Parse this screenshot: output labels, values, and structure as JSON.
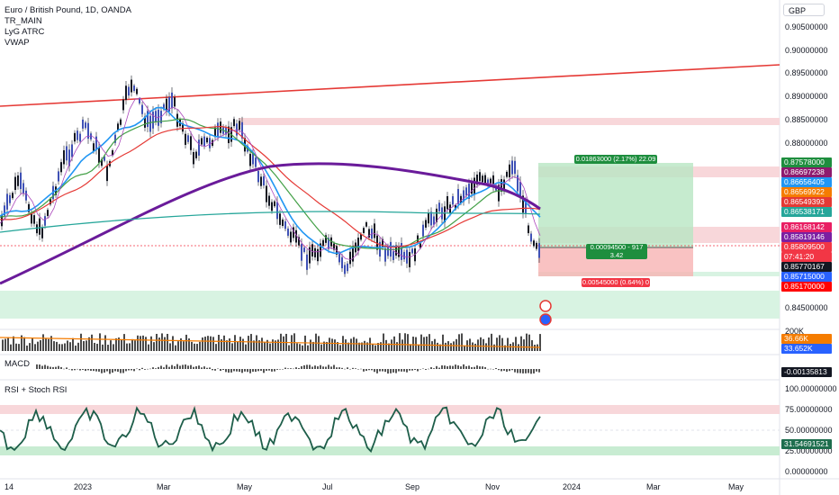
{
  "legend": {
    "symbol": "Euro / British Pound, 1D, OANDA",
    "indicators": [
      "TR_MAIN",
      "LyG ATRC",
      "VWAP"
    ]
  },
  "currency": "GBP",
  "price_axis": {
    "labels": [
      "0.90500000",
      "0.90000000",
      "0.89500000",
      "0.89000000",
      "0.88500000",
      "0.88000000",
      "0.84500000"
    ]
  },
  "price_tags": [
    {
      "text": "0.87578000",
      "color": "#1e8e3e"
    },
    {
      "text": "0.86697238",
      "color": "#8e1a6e"
    },
    {
      "text": "0.86656405",
      "color": "#2196f3"
    },
    {
      "text": "0.86569922",
      "color": "#f57c00"
    },
    {
      "text": "0.86549393",
      "color": "#e53935"
    },
    {
      "text": "0.86538171",
      "color": "#26a69a"
    },
    {
      "text": "0.86168142",
      "color": "#e91e63"
    },
    {
      "text": "0.85819146",
      "color": "#7b1fa2"
    },
    {
      "text": "0.85809500",
      "color": "#f23645"
    },
    {
      "text": "07:41:20",
      "color": "#f23645"
    },
    {
      "text": "0.85770167",
      "color": "#131722"
    },
    {
      "text": "0.85715000",
      "color": "#2962ff"
    },
    {
      "text": "0.85170000",
      "color": "#ff0000"
    }
  ],
  "position_tool": {
    "target_label": "0.01863000 (2.17%) 22.09",
    "entry_label_1": "0.00094500 - 917",
    "entry_label_2": "3.42",
    "stop_label": "0.00545000 (0.64%) 0"
  },
  "volume_pane": {
    "axis_label": "200K",
    "tags": [
      {
        "text": "36.66K",
        "color": "#f57c00"
      },
      {
        "text": "33.652K",
        "color": "#2962ff"
      }
    ]
  },
  "macd_pane": {
    "title": "MACD",
    "tag": "-0.00135813"
  },
  "rsi_pane": {
    "title": "RSI + Stoch RSI",
    "labels": [
      "100.00000000",
      "75.00000000",
      "50.00000000",
      "25.00000000",
      "0.00000000"
    ],
    "tag": "31.54691521"
  },
  "time_axis": {
    "labels": [
      "14",
      "2023",
      "Mar",
      "May",
      "Jul",
      "Sep",
      "Nov",
      "2024",
      "Mar",
      "May"
    ]
  }
}
